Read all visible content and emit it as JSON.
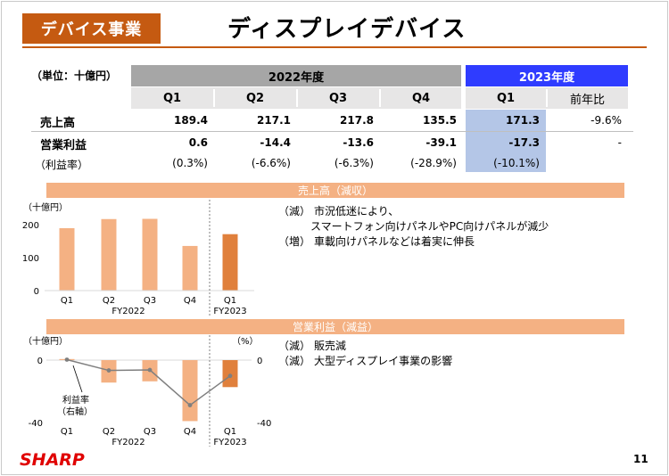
{
  "header": {
    "segment": "デバイス事業",
    "title": "ディスプレイデバイス"
  },
  "table": {
    "unit": "（単位：十億円）",
    "fy2022_label": "2022年度",
    "fy2023_label": "2023年度",
    "quarters": [
      "Q1",
      "Q2",
      "Q3",
      "Q4"
    ],
    "q1_2023": "Q1",
    "yoy_label": "前年比",
    "rows": [
      {
        "label": "売上高",
        "values": [
          "189.4",
          "217.1",
          "217.8",
          "135.5",
          "171.3",
          "-9.6%"
        ]
      },
      {
        "label": "営業利益",
        "values": [
          "0.6",
          "-14.4",
          "-13.6",
          "-39.1",
          "-17.3",
          "-"
        ]
      },
      {
        "label": "（利益率）",
        "values": [
          "(0.3%)",
          "(-6.6%)",
          "(-6.3%)",
          "(-28.9%)",
          "(-10.1%)",
          ""
        ]
      }
    ]
  },
  "sales_section": {
    "bar_title": "売上高（減収）",
    "notes": [
      {
        "tag": "（減）",
        "text": "市況低迷により、"
      },
      {
        "tag": "",
        "text": "スマートフォン向けパネルやPC向けパネルが減少"
      },
      {
        "tag": "（増）",
        "text": "車載向けパネルなどは着実に伸長"
      }
    ]
  },
  "profit_section": {
    "bar_title": "営業利益（減益）",
    "notes": [
      {
        "tag": "（減）",
        "text": "販売減"
      },
      {
        "tag": "（減）",
        "text": "大型ディスプレイ事業の影響"
      }
    ]
  },
  "chart_data": [
    {
      "type": "bar",
      "unit_label": "（十億円）",
      "categories": [
        "Q1",
        "Q2",
        "Q3",
        "Q4",
        "Q1"
      ],
      "group_labels": [
        "FY2022",
        "FY2023"
      ],
      "values": [
        189.4,
        217.1,
        217.8,
        135.5,
        171.3
      ],
      "yticks": [
        "0",
        "100",
        "200"
      ],
      "ylim": [
        0,
        230
      ],
      "colors": [
        "#f4b183",
        "#f4b183",
        "#f4b183",
        "#f4b183",
        "#e0803c"
      ]
    },
    {
      "type": "bar+line",
      "unit_label_left": "（十億円）",
      "unit_label_right": "（%）",
      "categories": [
        "Q1",
        "Q2",
        "Q3",
        "Q4",
        "Q1"
      ],
      "group_labels": [
        "FY2022",
        "FY2023"
      ],
      "series": [
        {
          "values": [
            0.6,
            -14.4,
            -13.6,
            -39.1,
            -17.3
          ]
        },
        {
          "name": "利益率（右軸）",
          "values": [
            0.3,
            -6.6,
            -6.3,
            -28.9,
            -10.1
          ]
        }
      ],
      "yticks_left": [
        "0",
        "-40"
      ],
      "yticks_right": [
        "0",
        "-40"
      ],
      "ylim": [
        -42,
        3
      ],
      "line_label": "利益率",
      "line_label2": "（右軸）",
      "colors": [
        "#f4b183",
        "#f4b183",
        "#f4b183",
        "#f4b183",
        "#e0803c",
        "#7f7f7f"
      ]
    }
  ],
  "footer": {
    "logo": "SHARP",
    "page": "11"
  }
}
